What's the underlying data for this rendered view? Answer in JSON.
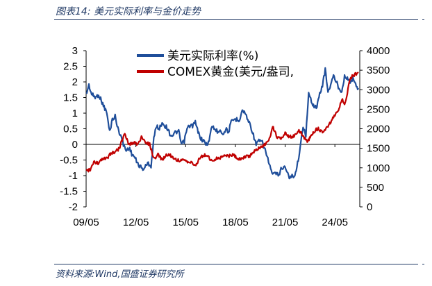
{
  "figure": {
    "title": "图表14:  美元实际利率与金价走势",
    "source": "资料来源:Wind,国盛证券研究所"
  },
  "chart_data": {
    "type": "line",
    "x_ticks": [
      "09/05",
      "12/05",
      "15/05",
      "18/05",
      "21/05",
      "24/05"
    ],
    "y_left": {
      "lim": [
        -2,
        3
      ],
      "ticks": [
        "3",
        "2.5",
        "2",
        "1.5",
        "1",
        "0.5",
        "0",
        "-0.5",
        "-1",
        "-1.5",
        "-2"
      ]
    },
    "y_right": {
      "lim": [
        0,
        4000
      ],
      "ticks": [
        "4000",
        "3500",
        "3000",
        "2500",
        "2000",
        "1500",
        "1000",
        "500",
        "0"
      ]
    },
    "legend_position": "top-center",
    "series": [
      {
        "name": "美元实际利率(%)",
        "axis": "left",
        "color": "#1f4e9a",
        "points": [
          [
            "2009-05",
            1.6
          ],
          [
            "2009-07",
            1.9
          ],
          [
            "2009-09",
            1.6
          ],
          [
            "2009-12",
            1.5
          ],
          [
            "2010-02",
            1.6
          ],
          [
            "2010-04",
            1.4
          ],
          [
            "2010-06",
            1.2
          ],
          [
            "2010-08",
            1.0
          ],
          [
            "2010-10",
            0.4
          ],
          [
            "2010-12",
            0.8
          ],
          [
            "2011-02",
            0.9
          ],
          [
            "2011-04",
            0.5
          ],
          [
            "2011-06",
            0.3
          ],
          [
            "2011-08",
            0.0
          ],
          [
            "2011-10",
            -0.2
          ],
          [
            "2011-12",
            -0.1
          ],
          [
            "2012-02",
            -0.3
          ],
          [
            "2012-04",
            -0.4
          ],
          [
            "2012-06",
            -0.6
          ],
          [
            "2012-08",
            -0.7
          ],
          [
            "2012-10",
            -0.8
          ],
          [
            "2012-12",
            -0.7
          ],
          [
            "2013-02",
            -0.6
          ],
          [
            "2013-04",
            -0.7
          ],
          [
            "2013-06",
            0.2
          ],
          [
            "2013-08",
            0.6
          ],
          [
            "2013-10",
            0.5
          ],
          [
            "2013-12",
            0.7
          ],
          [
            "2014-02",
            0.6
          ],
          [
            "2014-04",
            0.5
          ],
          [
            "2014-06",
            0.3
          ],
          [
            "2014-08",
            0.3
          ],
          [
            "2014-10",
            0.4
          ],
          [
            "2014-12",
            0.4
          ],
          [
            "2015-02",
            0.0
          ],
          [
            "2015-04",
            0.1
          ],
          [
            "2015-06",
            0.5
          ],
          [
            "2015-08",
            0.6
          ],
          [
            "2015-10",
            0.6
          ],
          [
            "2015-12",
            0.7
          ],
          [
            "2016-02",
            0.4
          ],
          [
            "2016-04",
            0.2
          ],
          [
            "2016-06",
            0.1
          ],
          [
            "2016-08",
            0.0
          ],
          [
            "2016-10",
            0.1
          ],
          [
            "2016-12",
            0.6
          ],
          [
            "2017-02",
            0.5
          ],
          [
            "2017-04",
            0.4
          ],
          [
            "2017-06",
            0.5
          ],
          [
            "2017-08",
            0.3
          ],
          [
            "2017-10",
            0.5
          ],
          [
            "2017-12",
            0.4
          ],
          [
            "2018-02",
            0.7
          ],
          [
            "2018-04",
            0.8
          ],
          [
            "2018-06",
            0.8
          ],
          [
            "2018-08",
            0.8
          ],
          [
            "2018-10",
            1.1
          ],
          [
            "2018-12",
            1.0
          ],
          [
            "2019-02",
            0.8
          ],
          [
            "2019-04",
            0.6
          ],
          [
            "2019-06",
            0.3
          ],
          [
            "2019-08",
            0.0
          ],
          [
            "2019-10",
            0.1
          ],
          [
            "2019-12",
            0.1
          ],
          [
            "2020-02",
            -0.1
          ],
          [
            "2020-04",
            -0.4
          ],
          [
            "2020-06",
            -0.7
          ],
          [
            "2020-08",
            -1.0
          ],
          [
            "2020-10",
            -0.9
          ],
          [
            "2020-12",
            -1.0
          ],
          [
            "2021-02",
            -0.8
          ],
          [
            "2021-04",
            -0.7
          ],
          [
            "2021-06",
            -0.8
          ],
          [
            "2021-08",
            -1.1
          ],
          [
            "2021-10",
            -1.0
          ],
          [
            "2021-12",
            -1.0
          ],
          [
            "2022-02",
            -0.6
          ],
          [
            "2022-04",
            -0.1
          ],
          [
            "2022-06",
            0.6
          ],
          [
            "2022-08",
            0.3
          ],
          [
            "2022-10",
            1.6
          ],
          [
            "2022-12",
            1.4
          ],
          [
            "2023-02",
            1.2
          ],
          [
            "2023-04",
            1.2
          ],
          [
            "2023-06",
            1.6
          ],
          [
            "2023-08",
            1.9
          ],
          [
            "2023-10",
            2.4
          ],
          [
            "2023-12",
            1.7
          ],
          [
            "2024-02",
            1.9
          ],
          [
            "2024-04",
            2.2
          ],
          [
            "2024-06",
            2.0
          ],
          [
            "2024-08",
            1.8
          ],
          [
            "2024-10",
            1.7
          ],
          [
            "2024-12",
            2.2
          ],
          [
            "2025-02",
            2.1
          ],
          [
            "2025-04",
            2.0
          ],
          [
            "2025-06",
            2.1
          ],
          [
            "2025-08",
            1.9
          ],
          [
            "2025-10",
            1.8
          ]
        ]
      },
      {
        "name": "COMEX黄金(美元/盎司,",
        "axis": "right",
        "color": "#c00000",
        "points": [
          [
            "2009-05",
            930
          ],
          [
            "2009-08",
            950
          ],
          [
            "2009-11",
            1150
          ],
          [
            "2010-02",
            1100
          ],
          [
            "2010-05",
            1230
          ],
          [
            "2010-08",
            1230
          ],
          [
            "2010-11",
            1380
          ],
          [
            "2011-02",
            1400
          ],
          [
            "2011-05",
            1500
          ],
          [
            "2011-08",
            1800
          ],
          [
            "2011-09",
            1880
          ],
          [
            "2011-12",
            1600
          ],
          [
            "2012-03",
            1650
          ],
          [
            "2012-06",
            1600
          ],
          [
            "2012-09",
            1770
          ],
          [
            "2012-12",
            1660
          ],
          [
            "2013-03",
            1600
          ],
          [
            "2013-06",
            1230
          ],
          [
            "2013-09",
            1330
          ],
          [
            "2013-12",
            1200
          ],
          [
            "2014-03",
            1330
          ],
          [
            "2014-06",
            1320
          ],
          [
            "2014-09",
            1220
          ],
          [
            "2014-12",
            1200
          ],
          [
            "2015-03",
            1180
          ],
          [
            "2015-06",
            1170
          ],
          [
            "2015-09",
            1130
          ],
          [
            "2015-12",
            1060
          ],
          [
            "2016-03",
            1240
          ],
          [
            "2016-06",
            1320
          ],
          [
            "2016-09",
            1320
          ],
          [
            "2016-12",
            1150
          ],
          [
            "2017-03",
            1250
          ],
          [
            "2017-06",
            1250
          ],
          [
            "2017-09",
            1320
          ],
          [
            "2017-12",
            1300
          ],
          [
            "2018-03",
            1330
          ],
          [
            "2018-06",
            1260
          ],
          [
            "2018-09",
            1200
          ],
          [
            "2018-12",
            1280
          ],
          [
            "2019-03",
            1300
          ],
          [
            "2019-06",
            1400
          ],
          [
            "2019-09",
            1500
          ],
          [
            "2019-12",
            1520
          ],
          [
            "2020-03",
            1620
          ],
          [
            "2020-06",
            1780
          ],
          [
            "2020-08",
            2050
          ],
          [
            "2020-11",
            1800
          ],
          [
            "2021-02",
            1750
          ],
          [
            "2021-05",
            1900
          ],
          [
            "2021-08",
            1800
          ],
          [
            "2021-11",
            1800
          ],
          [
            "2022-03",
            1950
          ],
          [
            "2022-06",
            1820
          ],
          [
            "2022-09",
            1670
          ],
          [
            "2022-12",
            1820
          ],
          [
            "2023-03",
            1970
          ],
          [
            "2023-05",
            2000
          ],
          [
            "2023-08",
            1920
          ],
          [
            "2023-10",
            2000
          ],
          [
            "2023-12",
            2070
          ],
          [
            "2024-03",
            2230
          ],
          [
            "2024-05",
            2350
          ],
          [
            "2024-08",
            2500
          ],
          [
            "2024-10",
            2750
          ],
          [
            "2024-12",
            2650
          ],
          [
            "2025-02",
            2900
          ],
          [
            "2025-04",
            3300
          ],
          [
            "2025-06",
            3350
          ],
          [
            "2025-08",
            3400
          ],
          [
            "2025-10",
            3450
          ]
        ]
      }
    ]
  }
}
